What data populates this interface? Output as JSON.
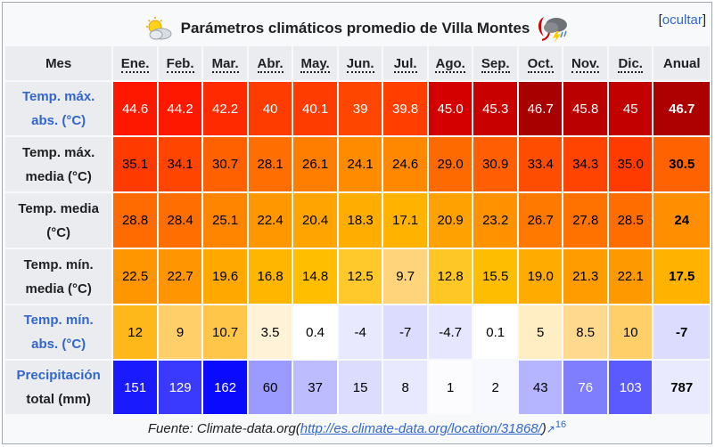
{
  "caption": {
    "title": "Parámetros climáticos promedio de Villa Montes",
    "hide_label": "ocultar"
  },
  "header": {
    "mes": "Mes",
    "months": [
      "Ene.",
      "Feb.",
      "Mar.",
      "Abr.",
      "May.",
      "Jun.",
      "Jul.",
      "Ago.",
      "Sep.",
      "Oct.",
      "Nov.",
      "Dic."
    ],
    "annual": "Anual"
  },
  "rows": [
    {
      "label1": "Temp. máx.",
      "label2": "abs. (°C)",
      "link": true,
      "values": [
        "44.6",
        "44.2",
        "42.2",
        "40",
        "40.1",
        "39",
        "39.8",
        "45.0",
        "45.3",
        "46.7",
        "45.8",
        "45"
      ],
      "annual": "46.7",
      "colors": [
        "#ff1800",
        "#ff1800",
        "#ff2a00",
        "#ff3c00",
        "#ff3c00",
        "#ff4600",
        "#ff3e00",
        "#d40000",
        "#c80000",
        "#a80000",
        "#ba0000",
        "#c20000"
      ],
      "text_colors": [
        "#ffffff",
        "#ffffff",
        "#ffffff",
        "#ffffff",
        "#ffffff",
        "#ffffff",
        "#ffffff",
        "#ffffff",
        "#ffffff",
        "#ffffff",
        "#ffffff",
        "#ffffff"
      ],
      "annual_color": "#ad0000",
      "annual_text": "#ffffff"
    },
    {
      "label1": "Temp. máx.",
      "label2": "media (°C)",
      "link": false,
      "values": [
        "35.1",
        "34.1",
        "30.7",
        "28.1",
        "26.1",
        "24.1",
        "24.6",
        "29.0",
        "30.9",
        "33.4",
        "34.3",
        "35.0"
      ],
      "annual": "30.5",
      "colors": [
        "#ff3a00",
        "#ff4500",
        "#ff6000",
        "#ff6e00",
        "#ff7e00",
        "#ff8b00",
        "#ff8800",
        "#ff6a00",
        "#ff5f00",
        "#ff4d00",
        "#ff4300",
        "#ff3b00"
      ],
      "text_colors": [
        "#000000",
        "#000000",
        "#000000",
        "#000000",
        "#000000",
        "#000000",
        "#000000",
        "#000000",
        "#000000",
        "#000000",
        "#000000",
        "#000000"
      ],
      "annual_color": "#ff6200",
      "annual_text": "#000000"
    },
    {
      "label1": "Temp. media",
      "label2": "(°C)",
      "link": false,
      "values": [
        "28.8",
        "28.4",
        "25.1",
        "22.4",
        "20.4",
        "18.3",
        "17.1",
        "20.9",
        "23.2",
        "26.7",
        "27.8",
        "28.5"
      ],
      "annual": "24",
      "colors": [
        "#ff6b00",
        "#ff6e00",
        "#ff8500",
        "#ff9800",
        "#ffa400",
        "#ffae00",
        "#ffb300",
        "#ffa100",
        "#ff9200",
        "#ff7800",
        "#ff7200",
        "#ff6d00"
      ],
      "text_colors": [
        "#000000",
        "#000000",
        "#000000",
        "#000000",
        "#000000",
        "#000000",
        "#000000",
        "#000000",
        "#000000",
        "#000000",
        "#000000",
        "#000000"
      ],
      "annual_color": "#ff8f00",
      "annual_text": "#000000"
    },
    {
      "label1": "Temp. mín.",
      "label2": "media (°C)",
      "link": false,
      "values": [
        "22.5",
        "22.7",
        "19.6",
        "16.8",
        "14.8",
        "12.5",
        "9.7",
        "12.8",
        "15.5",
        "19.0",
        "21.3",
        "22.1"
      ],
      "annual": "17.5",
      "colors": [
        "#ff9600",
        "#ff9500",
        "#ffa800",
        "#ffb600",
        "#ffbf00",
        "#ffc92c",
        "#ffd47a",
        "#ffc726",
        "#ffbd00",
        "#ffab00",
        "#ff9d00",
        "#ff9900"
      ],
      "text_colors": [
        "#000000",
        "#000000",
        "#000000",
        "#000000",
        "#000000",
        "#000000",
        "#000000",
        "#000000",
        "#000000",
        "#000000",
        "#000000",
        "#000000"
      ],
      "annual_color": "#ffb300",
      "annual_text": "#000000"
    },
    {
      "label1": "Temp. mín.",
      "label2": "abs. (°C)",
      "link": true,
      "values": [
        "12",
        "9",
        "10.7",
        "3.5",
        "0.4",
        "-4",
        "-7",
        "-4.7",
        "0.1",
        "5",
        "8.5",
        "10"
      ],
      "annual": "-7",
      "colors": [
        "#ffb81a",
        "#ffcf6a",
        "#ffc64a",
        "#fff2d6",
        "#ffffff",
        "#e8e8ff",
        "#dcdcff",
        "#e6e6ff",
        "#ffffff",
        "#ffedc4",
        "#ffd98e",
        "#ffcf6a"
      ],
      "text_colors": [
        "#000000",
        "#000000",
        "#000000",
        "#000000",
        "#000000",
        "#000000",
        "#000000",
        "#000000",
        "#000000",
        "#000000",
        "#000000",
        "#000000"
      ],
      "annual_color": "#dcdcff",
      "annual_text": "#000000"
    },
    {
      "label1": "Precipitación",
      "label2": "total (mm)",
      "link": true,
      "link_first_only": true,
      "values": [
        "151",
        "129",
        "162",
        "60",
        "37",
        "15",
        "8",
        "1",
        "2",
        "43",
        "76",
        "103"
      ],
      "annual": "787",
      "colors": [
        "#1a1aff",
        "#3a3aff",
        "#0a0aff",
        "#9a9aff",
        "#bcbcff",
        "#dcdcff",
        "#e8e8ff",
        "#fcfcff",
        "#f8f8ff",
        "#b4b4ff",
        "#7e7eff",
        "#5a5aff"
      ],
      "text_colors": [
        "#ffffff",
        "#ffffff",
        "#ffffff",
        "#000000",
        "#000000",
        "#000000",
        "#000000",
        "#000000",
        "#000000",
        "#000000",
        "#ffffff",
        "#ffffff"
      ],
      "annual_color": "#eaeaff",
      "annual_text": "#000000"
    }
  ],
  "source": {
    "prefix": "Fuente: Climate-data.org(",
    "link": "http://es.climate-data.org/location/31868/",
    "suffix": ")",
    "ref": "16"
  },
  "icons": {
    "left": "sun-cloud-icon",
    "right": "storm-icon",
    "external": "external-link-icon"
  }
}
